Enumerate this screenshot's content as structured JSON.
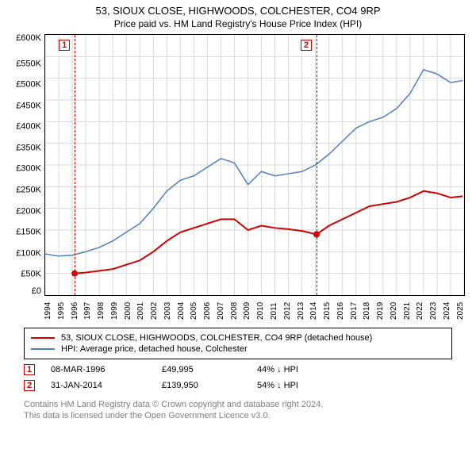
{
  "title": "53, SIOUX CLOSE, HIGHWOODS, COLCHESTER, CO4 9RP",
  "subtitle": "Price paid vs. HM Land Registry's House Price Index (HPI)",
  "chart": {
    "type": "line",
    "background_color": "#ffffff",
    "border_color": "#000000",
    "grid_color": "#d9d9d9",
    "x_years": [
      1994,
      1995,
      1996,
      1997,
      1998,
      1999,
      2000,
      2001,
      2002,
      2003,
      2004,
      2005,
      2006,
      2007,
      2008,
      2009,
      2010,
      2011,
      2012,
      2013,
      2014,
      2015,
      2016,
      2017,
      2018,
      2019,
      2020,
      2021,
      2022,
      2023,
      2024,
      2025
    ],
    "ylim": [
      0,
      600000
    ],
    "ytick_step": 50000,
    "y_prefix": "£",
    "y_suffix": "K",
    "y_divisor": 1000,
    "tick_fontsize": 11,
    "series": [
      {
        "label": "53, SIOUX CLOSE, HIGHWOODS, COLCHESTER, CO4 9RP (detached house)",
        "color": "#d10000",
        "line_width": 2,
        "points": [
          [
            1996.18,
            49995
          ],
          [
            1997,
            52000
          ],
          [
            1998,
            56000
          ],
          [
            1999,
            60000
          ],
          [
            2000,
            70000
          ],
          [
            2001,
            80000
          ],
          [
            2002,
            100000
          ],
          [
            2003,
            125000
          ],
          [
            2004,
            145000
          ],
          [
            2005,
            155000
          ],
          [
            2006,
            165000
          ],
          [
            2007,
            175000
          ],
          [
            2008,
            175000
          ],
          [
            2009,
            150000
          ],
          [
            2010,
            160000
          ],
          [
            2011,
            155000
          ],
          [
            2012,
            152000
          ],
          [
            2013,
            148000
          ],
          [
            2014.08,
            139950
          ],
          [
            2015,
            160000
          ],
          [
            2016,
            175000
          ],
          [
            2017,
            190000
          ],
          [
            2018,
            205000
          ],
          [
            2019,
            210000
          ],
          [
            2020,
            215000
          ],
          [
            2021,
            225000
          ],
          [
            2022,
            240000
          ],
          [
            2023,
            235000
          ],
          [
            2024,
            225000
          ],
          [
            2024.9,
            228000
          ]
        ],
        "markers": [
          {
            "n": 1,
            "x": 1996.18,
            "y": 49995
          },
          {
            "n": 2,
            "x": 2014.08,
            "y": 139950
          }
        ]
      },
      {
        "label": "HPI: Average price, detached house, Colchester",
        "color": "#4a7fc4",
        "line_width": 1.5,
        "points": [
          [
            1994,
            95000
          ],
          [
            1995,
            90000
          ],
          [
            1996,
            92000
          ],
          [
            1997,
            100000
          ],
          [
            1998,
            110000
          ],
          [
            1999,
            125000
          ],
          [
            2000,
            145000
          ],
          [
            2001,
            165000
          ],
          [
            2002,
            200000
          ],
          [
            2003,
            240000
          ],
          [
            2004,
            265000
          ],
          [
            2005,
            275000
          ],
          [
            2006,
            295000
          ],
          [
            2007,
            315000
          ],
          [
            2008,
            305000
          ],
          [
            2009,
            255000
          ],
          [
            2010,
            285000
          ],
          [
            2011,
            275000
          ],
          [
            2012,
            280000
          ],
          [
            2013,
            285000
          ],
          [
            2014,
            300000
          ],
          [
            2015,
            325000
          ],
          [
            2016,
            355000
          ],
          [
            2017,
            385000
          ],
          [
            2018,
            400000
          ],
          [
            2019,
            410000
          ],
          [
            2020,
            430000
          ],
          [
            2021,
            465000
          ],
          [
            2022,
            520000
          ],
          [
            2023,
            510000
          ],
          [
            2024,
            490000
          ],
          [
            2024.9,
            495000
          ]
        ]
      }
    ]
  },
  "legend": [
    {
      "color": "#d10000",
      "label": "53, SIOUX CLOSE, HIGHWOODS, COLCHESTER, CO4 9RP (detached house)"
    },
    {
      "color": "#4a7fc4",
      "label": "HPI: Average price, detached house, Colchester"
    }
  ],
  "events": [
    {
      "n": "1",
      "date": "08-MAR-1996",
      "price": "£49,995",
      "pct": "44% ↓ HPI",
      "color": "#d10000"
    },
    {
      "n": "2",
      "date": "31-JAN-2014",
      "price": "£139,950",
      "pct": "54% ↓ HPI",
      "color": "#d10000"
    }
  ],
  "footnote_line1": "Contains HM Land Registry data © Crown copyright and database right 2024.",
  "footnote_line2": "This data is licensed under the Open Government Licence v3.0.",
  "footnote_color": "#808080"
}
